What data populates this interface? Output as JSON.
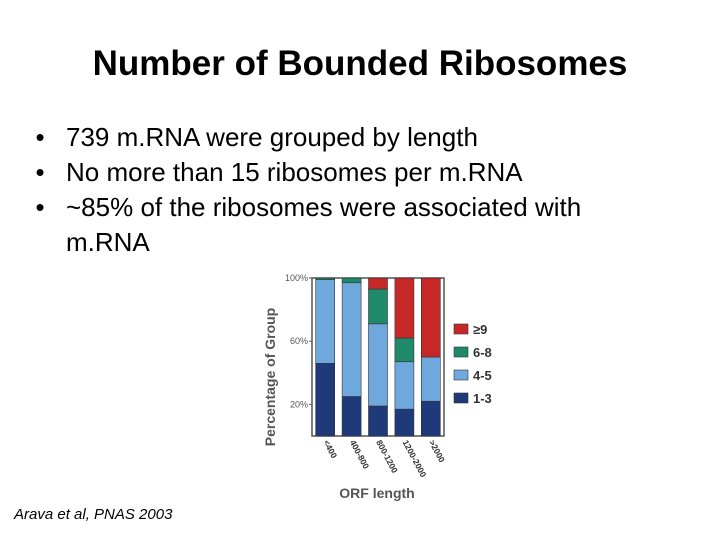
{
  "slide": {
    "title": "Number of Bounded Ribosomes",
    "bullets": [
      "739 m.RNA were grouped by length",
      "No more than 15 ribosomes per m.RNA",
      "~85% of the ribosomes were associated with m.RNA"
    ],
    "bullet_glyph": "•",
    "citation": "Arava et al, PNAS 2003"
  },
  "chart_data": {
    "type": "bar",
    "stacked": true,
    "xlabel": "ORF length",
    "ylabel": "Percentage of Group",
    "yticks": [
      "100%",
      "60%",
      "20%"
    ],
    "ytick_values": [
      100,
      60,
      20
    ],
    "ylim": [
      0,
      100
    ],
    "categories": [
      "<400",
      "400-800",
      "800-1200",
      "1200-2000",
      ">2000"
    ],
    "series": [
      {
        "name": "1-3",
        "color": "#1f3a7a",
        "values": [
          46,
          25,
          19,
          17,
          22
        ]
      },
      {
        "name": "4-5",
        "color": "#6fa8dc",
        "values": [
          53,
          72,
          52,
          30,
          28
        ]
      },
      {
        "name": "6-8",
        "color": "#1f8a6a",
        "values": [
          1,
          3,
          22,
          15,
          0
        ]
      },
      {
        "name": "≥9",
        "color": "#c62828",
        "values": [
          0,
          0,
          7,
          38,
          50
        ]
      }
    ],
    "legend_order": [
      "≥9",
      "6-8",
      "4-5",
      "1-3"
    ],
    "legend_position": "right"
  }
}
